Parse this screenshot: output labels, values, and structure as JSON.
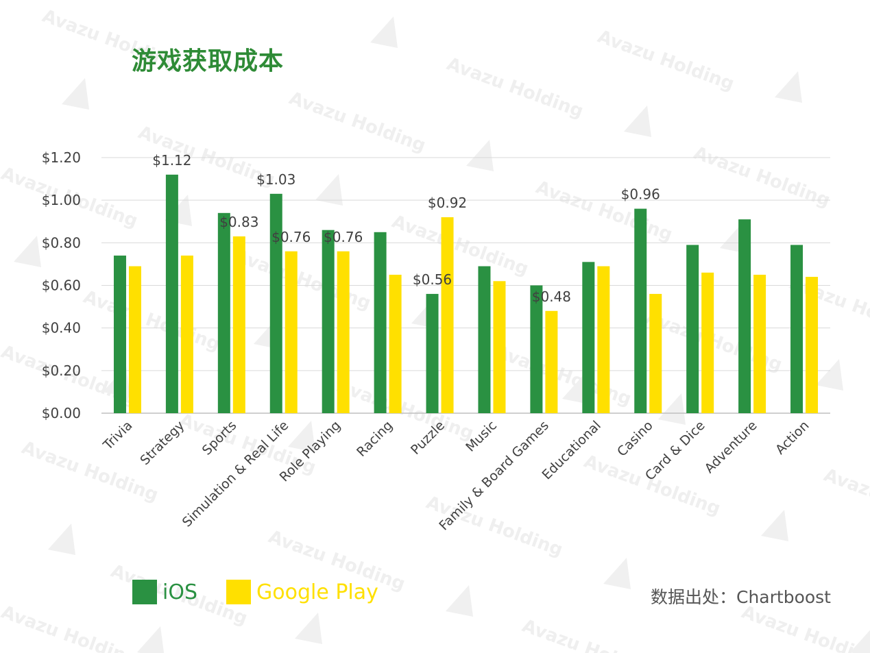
{
  "page": {
    "title": "游戏获取成本",
    "source": "数据出处：Chartboost",
    "watermark": "Avazu Holding"
  },
  "colors": {
    "ios": "#2a9142",
    "google_play": "#ffe000",
    "grid": "#d9d9d9",
    "title": "#2e8b36"
  },
  "legend": [
    {
      "label": "iOS",
      "color": "#2a9142"
    },
    {
      "label": "Google Play",
      "color": "#ffe000"
    }
  ],
  "chart_data": {
    "type": "bar",
    "title": "游戏获取成本",
    "xlabel": "",
    "ylabel": "",
    "ylim": [
      0,
      1.2
    ],
    "yticks": [
      "$0.00",
      "$0.20",
      "$0.40",
      "$0.60",
      "$0.80",
      "$1.00",
      "$1.20"
    ],
    "categories": [
      "Trivia",
      "Strategy",
      "Sports",
      "Simulation & Real Life",
      "Role Playing",
      "Racing",
      "Puzzle",
      "Music",
      "Family & Board Games",
      "Educational",
      "Casino",
      "Card & Dice",
      "Adventure",
      "Action"
    ],
    "series": [
      {
        "name": "iOS",
        "values": [
          0.74,
          1.12,
          0.94,
          1.03,
          0.86,
          0.85,
          0.56,
          0.69,
          0.6,
          0.71,
          0.96,
          0.79,
          0.91,
          0.79
        ]
      },
      {
        "name": "Google Play",
        "values": [
          0.69,
          0.74,
          0.83,
          0.76,
          0.76,
          0.65,
          0.92,
          0.62,
          0.48,
          0.69,
          0.56,
          0.66,
          0.65,
          0.64
        ]
      }
    ],
    "data_labels": [
      {
        "series": 0,
        "index": 1,
        "text": "$1.12"
      },
      {
        "series": 1,
        "index": 2,
        "text": "$0.83"
      },
      {
        "series": 0,
        "index": 3,
        "text": "$1.03"
      },
      {
        "series": 1,
        "index": 3,
        "text": "$0.76"
      },
      {
        "series": 1,
        "index": 4,
        "text": "$0.76"
      },
      {
        "series": 0,
        "index": 6,
        "text": "$0.56"
      },
      {
        "series": 1,
        "index": 6,
        "text": "$0.92"
      },
      {
        "series": 1,
        "index": 8,
        "text": "$0.48"
      },
      {
        "series": 0,
        "index": 10,
        "text": "$0.96"
      }
    ]
  }
}
